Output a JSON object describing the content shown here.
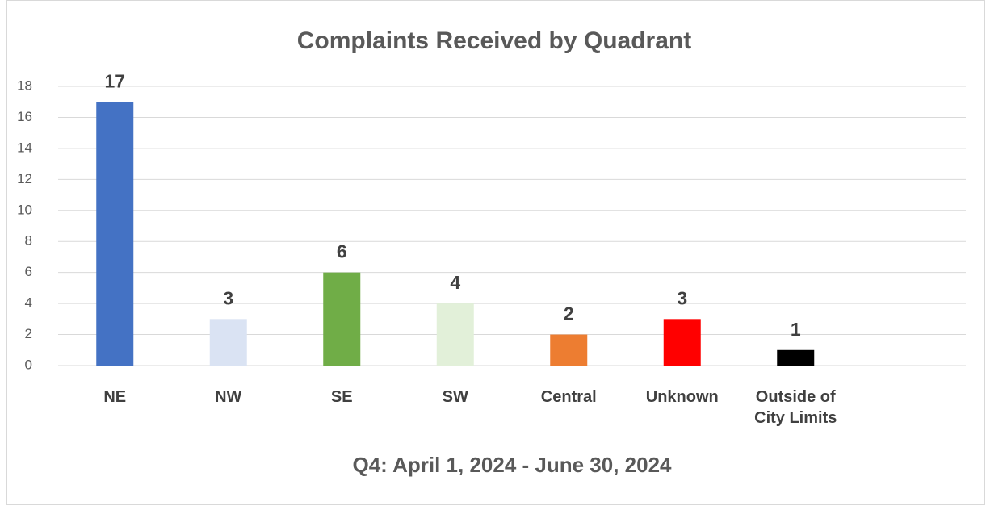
{
  "chart_data": {
    "type": "bar",
    "title": "Complaints Received by Quadrant",
    "x_label": "Q4: April 1, 2024 - June 30, 2024",
    "categories": [
      "NE",
      "NW",
      "SE",
      "SW",
      "Central",
      "Unknown",
      "Outside of City Limits",
      null
    ],
    "values": [
      17,
      3,
      6,
      4,
      2,
      3,
      1,
      null
    ],
    "colors": [
      "#4472c4",
      "#dae3f3",
      "#70ad47",
      "#e2f0d9",
      "#ed7d31",
      "#ff0000",
      "#000000",
      null
    ],
    "ylim": [
      0,
      18
    ],
    "yticks": [
      0,
      2,
      4,
      6,
      8,
      10,
      12,
      14,
      16,
      18
    ],
    "grid": true
  }
}
